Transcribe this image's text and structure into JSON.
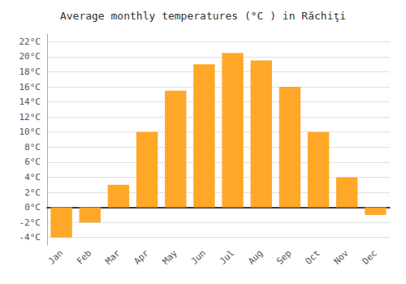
{
  "chart_data": {
    "type": "bar",
    "title": "Average monthly temperatures (°C ) in Răchiţi",
    "categories": [
      "Jan",
      "Feb",
      "Mar",
      "Apr",
      "May",
      "Jun",
      "Jul",
      "Aug",
      "Sep",
      "Oct",
      "Nov",
      "Dec"
    ],
    "values": [
      -4,
      -2,
      3,
      10,
      15.5,
      19,
      20.5,
      19.5,
      16,
      10,
      4,
      -1
    ],
    "color": "#FFA726",
    "ylim": [
      -5,
      23
    ],
    "yticks": [
      {
        "value": -4,
        "label": "-4°C"
      },
      {
        "value": -2,
        "label": "-2°C"
      },
      {
        "value": 0,
        "label": "0°C"
      },
      {
        "value": 2,
        "label": "2°C"
      },
      {
        "value": 4,
        "label": "4°C"
      },
      {
        "value": 6,
        "label": "6°C"
      },
      {
        "value": 8,
        "label": "8°C"
      },
      {
        "value": 10,
        "label": "10°C"
      },
      {
        "value": 12,
        "label": "12°C"
      },
      {
        "value": 14,
        "label": "14°C"
      },
      {
        "value": 16,
        "label": "16°C"
      },
      {
        "value": 18,
        "label": "18°C"
      },
      {
        "value": 20,
        "label": "20°C"
      },
      {
        "value": 22,
        "label": "22°C"
      }
    ],
    "grid": true
  }
}
